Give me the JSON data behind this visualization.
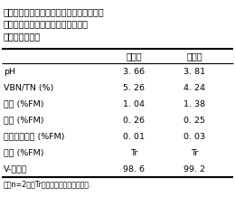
{
  "title_line1": "表１．糊熟期トウモロコシへの配合飼料混",
  "title_line2": "合の有無と細断ロールベールサイレ",
  "title_line3": "ージの発酵品質",
  "col_headers": [
    "",
    "対照区",
    "混合区"
  ],
  "rows": [
    [
      "pH",
      "3. 66",
      "3. 81"
    ],
    [
      "VBN/TN (%)",
      "5. 26",
      "4. 24"
    ],
    [
      "乳酸 (%FM)",
      "1. 04",
      "1. 38"
    ],
    [
      "酢酸 (%FM)",
      "0. 26",
      "0. 25"
    ],
    [
      "プロピオン酸 (%FM)",
      "0. 01",
      "0. 03"
    ],
    [
      "酪酸 (%FM)",
      "Tr",
      "Tr"
    ],
    [
      "V-スコア",
      "98. 6",
      "99. 2"
    ]
  ],
  "footnote": "各区n=2．　Tr：検出されるものの微量.",
  "bg_color": "#ffffff",
  "text_color": "#000000",
  "title_fontsize": 7.0,
  "header_fontsize": 7.0,
  "cell_fontsize": 6.8,
  "footnote_fontsize": 5.8
}
